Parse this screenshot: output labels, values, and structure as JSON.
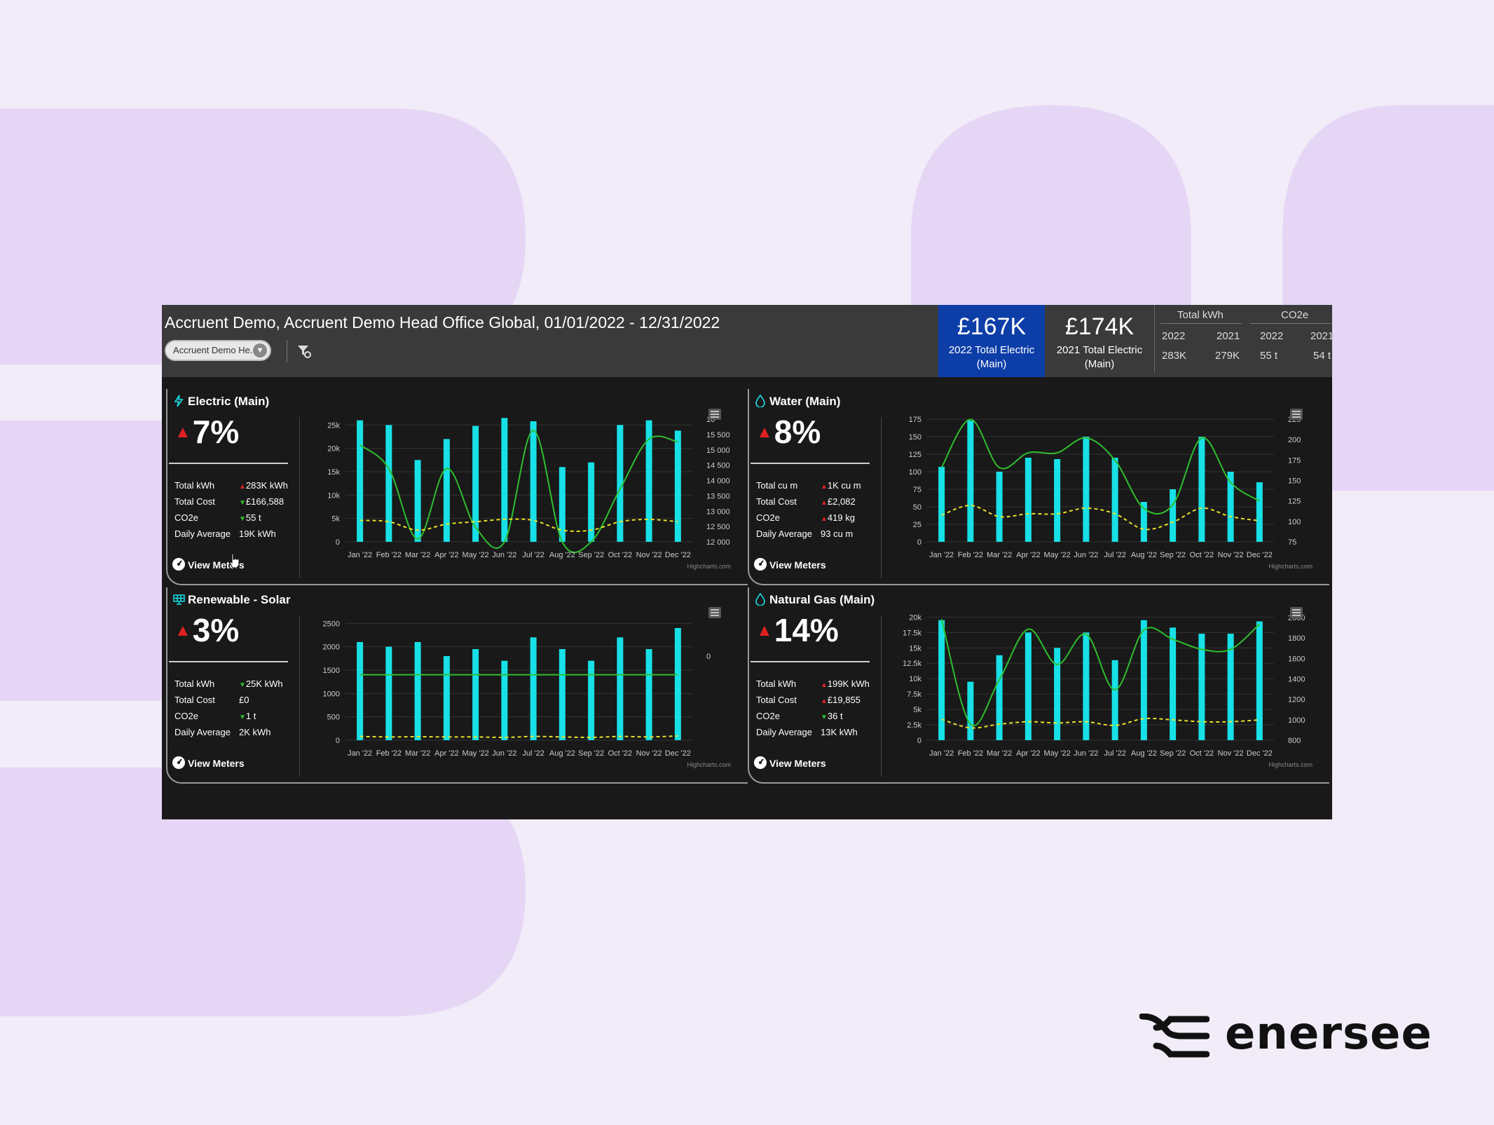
{
  "header": {
    "title": "Accruent Demo, Accruent Demo Head Office Global, 01/01/2022 - 12/31/2022",
    "site_dropdown": "Accruent Demo He...",
    "filter_icon": "filter-settings-icon"
  },
  "kpis": [
    {
      "value": "£167K",
      "label_line1": "2022 Total Electric",
      "label_line2": "(Main)",
      "color": "#0d3ea8"
    },
    {
      "value": "£174K",
      "label_line1": "2021 Total Electric",
      "label_line2": "(Main)",
      "color": "#3a3a3a"
    }
  ],
  "summary": {
    "kwh_header": "Total kWh",
    "co2_header": "CO2e",
    "kwh_year1": "2022",
    "kwh_year2": "2021",
    "kwh_val1": "283K",
    "kwh_val2": "279K",
    "co2_year1": "2022",
    "co2_year2": "2021",
    "co2_val1": "55 t",
    "co2_val2": "54 t"
  },
  "months": [
    "Jan '22",
    "Feb '22",
    "Mar '22",
    "Apr '22",
    "May '22",
    "Jun '22",
    "Jul '22",
    "Aug '22",
    "Sep '22",
    "Oct '22",
    "Nov '22",
    "Dec '22"
  ],
  "credit": "Highcharts.com",
  "view_meters": "View Meters",
  "colors": {
    "bar": "#17e0e6",
    "line": "#2fbf2f",
    "dashed": "#e8e02a",
    "up": "#e02020",
    "down": "#2fbf2f"
  },
  "panels": [
    {
      "title": "Electric (Main)",
      "icon": "lightning-icon",
      "pct": "7%",
      "direction": "up",
      "stats": [
        {
          "label": "Total kWh",
          "value": "283K kWh",
          "dir": "up"
        },
        {
          "label": "Total Cost",
          "value": "£166,588",
          "dir": "down"
        },
        {
          "label": "CO2e",
          "value": "55 t",
          "dir": "down"
        },
        {
          "label": "Daily Average",
          "value": "19K kWh",
          "dir": ""
        }
      ],
      "y_left_ticks": [
        "0",
        "5k",
        "10k",
        "15k",
        "20k",
        "25k"
      ],
      "y_right_ticks": [
        "12 000",
        "12 500",
        "13 000",
        "13 500",
        "14 000",
        "14 500",
        "15 000",
        "15 500",
        "16"
      ]
    },
    {
      "title": "Water (Main)",
      "icon": "water-drop-icon",
      "pct": "8%",
      "direction": "up",
      "stats": [
        {
          "label": "Total cu m",
          "value": "1K cu m",
          "dir": "up"
        },
        {
          "label": "Total Cost",
          "value": "£2,082",
          "dir": "up"
        },
        {
          "label": "CO2e",
          "value": "419 kg",
          "dir": "up"
        },
        {
          "label": "Daily Average",
          "value": "93 cu m",
          "dir": ""
        }
      ],
      "y_left_ticks": [
        "0",
        "25",
        "50",
        "75",
        "100",
        "125",
        "150",
        "175"
      ],
      "y_right_ticks": [
        "75",
        "100",
        "125",
        "150",
        "175",
        "200",
        "225"
      ]
    },
    {
      "title": "Renewable - Solar",
      "icon": "solar-panel-icon",
      "pct": "3%",
      "direction": "up",
      "stats": [
        {
          "label": "Total kWh",
          "value": "25K kWh",
          "dir": "down"
        },
        {
          "label": "Total Cost",
          "value": "£0",
          "dir": ""
        },
        {
          "label": "CO2e",
          "value": "1 t",
          "dir": "down"
        },
        {
          "label": "Daily Average",
          "value": "2K kWh",
          "dir": ""
        }
      ],
      "y_left_ticks": [
        "0",
        "500",
        "1000",
        "1500",
        "2000",
        "2500"
      ],
      "y_right_ticks": [
        "0"
      ]
    },
    {
      "title": "Natural Gas (Main)",
      "icon": "gas-flame-icon",
      "pct": "14%",
      "direction": "up",
      "stats": [
        {
          "label": "Total kWh",
          "value": "199K kWh",
          "dir": "up"
        },
        {
          "label": "Total Cost",
          "value": "£19,855",
          "dir": "up"
        },
        {
          "label": "CO2e",
          "value": "36 t",
          "dir": "down"
        },
        {
          "label": "Daily Average",
          "value": "13K kWh",
          "dir": ""
        }
      ],
      "y_left_ticks": [
        "0",
        "2.5k",
        "5k",
        "7.5k",
        "10k",
        "12.5k",
        "15k",
        "17.5k",
        "20k"
      ],
      "y_right_ticks": [
        "800",
        "1000",
        "1200",
        "1400",
        "1600",
        "1800",
        "2000"
      ]
    }
  ],
  "chart_data": [
    {
      "type": "bar",
      "title": "Electric (Main)",
      "categories": [
        "Jan '22",
        "Feb '22",
        "Mar '22",
        "Apr '22",
        "May '22",
        "Jun '22",
        "Jul '22",
        "Aug '22",
        "Sep '22",
        "Oct '22",
        "Nov '22",
        "Dec '22"
      ],
      "ylim": [
        0,
        27000
      ],
      "series": [
        {
          "values": [
            26000,
            25000,
            17500,
            22000,
            24800,
            26500,
            25800,
            16000,
            17000,
            25000,
            26000,
            23800
          ]
        },
        {
          "values": [
            15300,
            14500,
            12100,
            14500,
            12500,
            12000,
            15800,
            12000,
            12000,
            13800,
            15500,
            15400
          ],
          "right_axis": true,
          "ylim_right": [
            12000,
            16300
          ]
        },
        {
          "values": [
            4600,
            4300,
            2500,
            3800,
            4300,
            4800,
            4600,
            2500,
            2500,
            4300,
            4800,
            4300
          ]
        }
      ]
    },
    {
      "type": "bar",
      "title": "Water (Main)",
      "categories": [
        "Jan '22",
        "Feb '22",
        "Mar '22",
        "Apr '22",
        "May '22",
        "Jun '22",
        "Jul '22",
        "Aug '22",
        "Sep '22",
        "Oct '22",
        "Nov '22",
        "Dec '22"
      ],
      "ylim": [
        0,
        180
      ],
      "series": [
        {
          "values": [
            107,
            173,
            100,
            120,
            118,
            150,
            120,
            57,
            75,
            150,
            100,
            85
          ]
        },
        {
          "values": [
            175,
            240,
            175,
            195,
            195,
            215,
            185,
            120,
            125,
            215,
            155,
            130
          ],
          "right_axis": true,
          "ylim_right": [
            75,
            245
          ]
        },
        {
          "values": [
            38,
            52,
            36,
            40,
            40,
            48,
            40,
            18,
            28,
            48,
            36,
            30
          ]
        }
      ]
    },
    {
      "type": "bar",
      "title": "Renewable - Solar",
      "categories": [
        "Jan '22",
        "Feb '22",
        "Mar '22",
        "Apr '22",
        "May '22",
        "Jun '22",
        "Jul '22",
        "Aug '22",
        "Sep '22",
        "Oct '22",
        "Nov '22",
        "Dec '22"
      ],
      "ylim": [
        0,
        2700
      ],
      "series": [
        {
          "values": [
            2100,
            2000,
            2100,
            1800,
            1950,
            1700,
            2200,
            1950,
            1700,
            2200,
            1950,
            2400
          ]
        },
        {
          "values": [
            1400,
            1400,
            1400,
            1400,
            1400,
            1400,
            1400,
            1400,
            1400,
            1400,
            1400,
            1400
          ]
        },
        {
          "values": [
            80,
            70,
            75,
            70,
            70,
            60,
            80,
            70,
            60,
            80,
            70,
            90
          ]
        }
      ]
    },
    {
      "type": "bar",
      "title": "Natural Gas (Main)",
      "categories": [
        "Jan '22",
        "Feb '22",
        "Mar '22",
        "Apr '22",
        "May '22",
        "Jun '22",
        "Jul '22",
        "Aug '22",
        "Sep '22",
        "Oct '22",
        "Nov '22",
        "Dec '22"
      ],
      "ylim": [
        0,
        20500
      ],
      "series": [
        {
          "values": [
            19500,
            9500,
            13800,
            17500,
            15000,
            17500,
            13000,
            19500,
            18300,
            17300,
            17300,
            19300
          ]
        },
        {
          "values": [
            2000,
            960,
            1400,
            1900,
            1550,
            1850,
            1300,
            1890,
            1800,
            1700,
            1700,
            1950
          ],
          "right_axis": true,
          "ylim_right": [
            800,
            2050
          ]
        },
        {
          "values": [
            3400,
            2000,
            2600,
            3000,
            2800,
            3000,
            2400,
            3500,
            3300,
            3000,
            3000,
            3300
          ]
        }
      ]
    }
  ],
  "brand": {
    "name": "enersee",
    "logo_icon": "enersee-logo-icon"
  }
}
